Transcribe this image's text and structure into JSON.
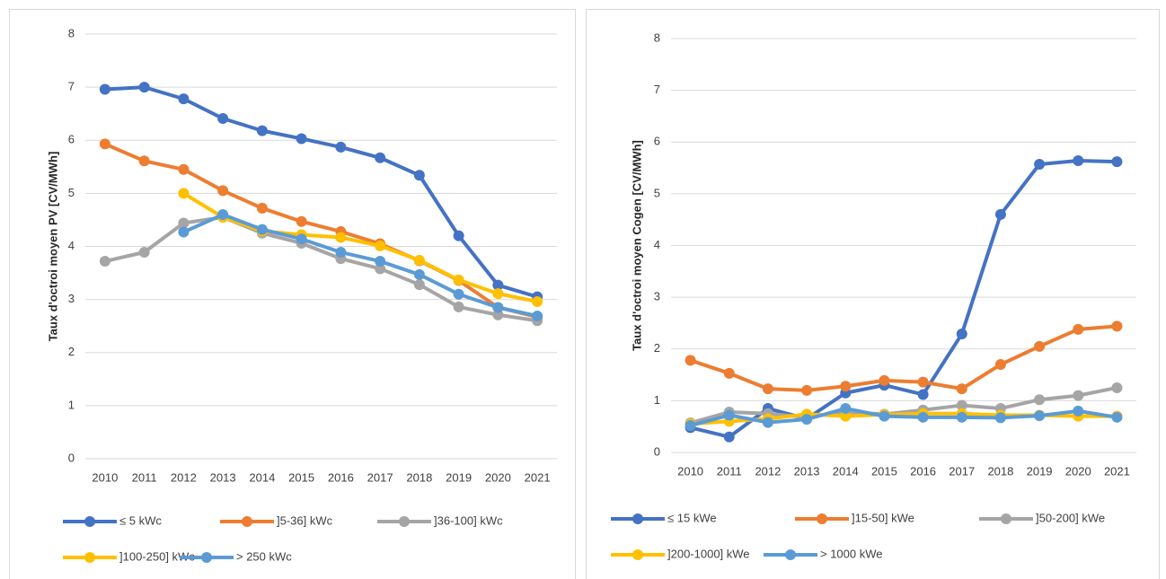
{
  "chart_data": [
    {
      "type": "line",
      "y_label": "Taux d'octroi moyen PV [CV/MWh]",
      "categories": [
        "2010",
        "2011",
        "2012",
        "2013",
        "2014",
        "2015",
        "2016",
        "2017",
        "2018",
        "2019",
        "2020",
        "2021"
      ],
      "ylim": [
        0,
        8
      ],
      "yticks": [
        0,
        1,
        2,
        3,
        4,
        5,
        6,
        7,
        8
      ],
      "grid": true,
      "legend": "bottom",
      "series": [
        {
          "name": "≤ 5 kWc",
          "color": "#4472c4",
          "values": [
            6.96,
            7.0,
            6.78,
            6.41,
            6.18,
            6.03,
            5.87,
            5.67,
            5.34,
            4.2,
            3.27,
            3.05
          ]
        },
        {
          "name": "]5-36] kWc",
          "color": "#ed7d31",
          "values": [
            5.93,
            5.61,
            5.45,
            5.05,
            4.72,
            4.47,
            4.28,
            4.05,
            3.73,
            3.36,
            2.85,
            2.67
          ]
        },
        {
          "name": "]36-100] kWc",
          "color": "#a5a5a5",
          "values": [
            3.72,
            3.89,
            4.44,
            4.55,
            4.25,
            4.06,
            3.77,
            3.58,
            3.28,
            2.86,
            2.71,
            2.6
          ]
        },
        {
          "name": "]100-250] kWc",
          "color": "#ffc000",
          "values": [
            null,
            null,
            5.0,
            4.55,
            4.29,
            4.22,
            4.17,
            4.01,
            3.74,
            3.37,
            3.11,
            2.96
          ]
        },
        {
          "name": "> 250 kWc",
          "color": "#5b9bd5",
          "values": [
            null,
            null,
            4.27,
            4.6,
            4.32,
            4.14,
            3.89,
            3.72,
            3.47,
            3.1,
            2.85,
            2.69
          ]
        }
      ]
    },
    {
      "type": "line",
      "y_label": "Taux d'octroi moyen Cogen [CV/MWh]",
      "categories": [
        "2010",
        "2011",
        "2012",
        "2013",
        "2014",
        "2015",
        "2016",
        "2017",
        "2018",
        "2019",
        "2020",
        "2021"
      ],
      "ylim": [
        0,
        8
      ],
      "yticks": [
        0,
        1,
        2,
        3,
        4,
        5,
        6,
        7,
        8
      ],
      "grid": true,
      "legend": "bottom",
      "series": [
        {
          "name": "≤ 15 kWe",
          "color": "#4472c4",
          "values": [
            0.48,
            0.3,
            0.85,
            0.65,
            1.15,
            1.3,
            1.12,
            2.29,
            4.6,
            5.57,
            5.64,
            5.62
          ]
        },
        {
          "name": "]15-50] kWe",
          "color": "#ed7d31",
          "values": [
            1.78,
            1.53,
            1.23,
            1.2,
            1.28,
            1.39,
            1.36,
            1.23,
            1.7,
            2.05,
            2.38,
            2.44
          ]
        },
        {
          "name": "]50-200] kWe",
          "color": "#a5a5a5",
          "values": [
            0.57,
            0.78,
            0.75,
            0.68,
            0.78,
            0.74,
            0.82,
            0.91,
            0.85,
            1.02,
            1.1,
            1.25
          ]
        },
        {
          "name": "]200-1000] kWe",
          "color": "#ffc000",
          "values": [
            0.55,
            0.6,
            0.65,
            0.74,
            0.7,
            0.73,
            0.75,
            0.75,
            0.72,
            0.72,
            0.7,
            0.7
          ]
        },
        {
          "name": "> 1000 kWe",
          "color": "#5b9bd5",
          "values": [
            0.52,
            0.72,
            0.58,
            0.64,
            0.85,
            0.7,
            0.68,
            0.68,
            0.67,
            0.71,
            0.8,
            0.68
          ]
        }
      ]
    }
  ]
}
